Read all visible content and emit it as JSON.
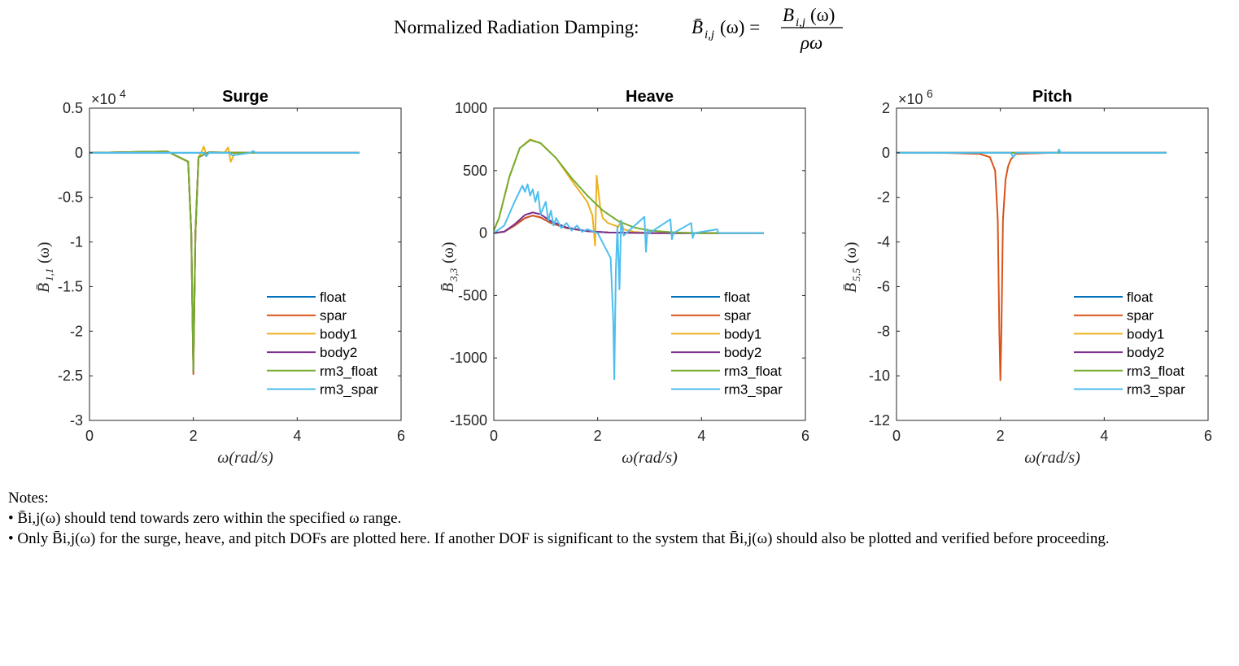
{
  "figure": {
    "title_prefix": "Normalized Radiation Damping:",
    "title_lhs": "B̄",
    "title_lhs_sub": "i,j",
    "title_lhs_arg": "(ω) =",
    "title_num": "B",
    "title_num_sub": "i,j",
    "title_num_arg": "(ω)",
    "title_den": "ρω"
  },
  "notes": {
    "heading": "Notes:",
    "line1": "• B̄i,j(ω) should tend towards zero within the specified ω range.",
    "line2": "• Only B̄i,j(ω) for the surge, heave, and pitch DOFs are plotted here. If another DOF is significant to the system that B̄i,j(ω) should also be plotted and verified before proceeding."
  },
  "chart_data": [
    {
      "type": "line",
      "title": "Surge",
      "xlabel": "ω(rad/s)",
      "ylabel": "B̄1,1(ω)",
      "ylabel_main": "B̄",
      "ylabel_sub": "1,1",
      "ylabel_arg": "(ω)",
      "exponent_label": "×10",
      "exponent_power": "4",
      "xlim": [
        0,
        6
      ],
      "ylim": [
        -3,
        0.5
      ],
      "xticks": [
        "0",
        "2",
        "4",
        "6"
      ],
      "yticks": [
        "0.5",
        "0",
        "-0.5",
        "-1",
        "-1.5",
        "-2",
        "-2.5",
        "-3"
      ],
      "ytick_values": [
        0.5,
        0,
        -0.5,
        -1,
        -1.5,
        -2,
        -2.5,
        -3
      ],
      "legend": "bottom-right",
      "series": [
        {
          "name": "float",
          "color": "#0072BD",
          "x": [
            0,
            1,
            2,
            3,
            4,
            5.2
          ],
          "y": [
            0,
            0,
            0,
            0,
            0,
            0
          ]
        },
        {
          "name": "spar",
          "color": "#D95319",
          "x": [
            0,
            1.0,
            1.5,
            1.9,
            1.96,
            2.0,
            2.04,
            2.1,
            2.3,
            3,
            4,
            5.2
          ],
          "y": [
            0,
            0.01,
            0.015,
            -0.1,
            -0.9,
            -2.48,
            -0.9,
            -0.05,
            0.005,
            0,
            0,
            0
          ]
        },
        {
          "name": "body1",
          "color": "#EDB120",
          "x": [
            0,
            1.0,
            1.5,
            1.9,
            1.96,
            2.0,
            2.04,
            2.1,
            2.15,
            2.2,
            2.25,
            2.3,
            2.6,
            2.67,
            2.72,
            2.8,
            3,
            4,
            5.2
          ],
          "y": [
            0,
            0.01,
            0.015,
            -0.1,
            -0.9,
            -2.4,
            -0.9,
            -0.05,
            0.0,
            0.07,
            -0.02,
            0.0,
            0.0,
            0.06,
            -0.1,
            0.0,
            0,
            0,
            0
          ]
        },
        {
          "name": "body2",
          "color": "#7E2F8E",
          "x": [
            0,
            1.0,
            1.5,
            1.9,
            1.96,
            2.0,
            2.04,
            2.1,
            2.3,
            3,
            4,
            5.2
          ],
          "y": [
            0,
            0.01,
            0.015,
            -0.1,
            -0.9,
            -2.45,
            -0.9,
            -0.05,
            0.005,
            0,
            0,
            0
          ]
        },
        {
          "name": "rm3_float",
          "color": "#77AC30",
          "x": [
            0,
            1.0,
            1.5,
            1.9,
            1.96,
            2.0,
            2.04,
            2.1,
            2.3,
            3,
            4,
            5.2
          ],
          "y": [
            0,
            0.01,
            0.015,
            -0.1,
            -0.9,
            -2.45,
            -0.9,
            -0.05,
            0.005,
            0,
            0,
            0
          ]
        },
        {
          "name": "rm3_spar",
          "color": "#4DBEEE",
          "x": [
            0,
            1.5,
            2.0,
            2.2,
            2.25,
            2.3,
            2.7,
            2.75,
            3.1,
            3.15,
            3.2,
            4,
            5.2
          ],
          "y": [
            0,
            0,
            0,
            0,
            -0.04,
            0,
            0,
            -0.03,
            0,
            0.02,
            0,
            0,
            0
          ]
        }
      ]
    },
    {
      "type": "line",
      "title": "Heave",
      "xlabel": "ω(rad/s)",
      "ylabel": "B̄3,3(ω)",
      "ylabel_main": "B̄",
      "ylabel_sub": "3,3",
      "ylabel_arg": "(ω)",
      "exponent_label": "",
      "exponent_power": "",
      "xlim": [
        0,
        6
      ],
      "ylim": [
        -1500,
        1000
      ],
      "xticks": [
        "0",
        "2",
        "4",
        "6"
      ],
      "yticks": [
        "1000",
        "500",
        "0",
        "-500",
        "-1000",
        "-1500"
      ],
      "ytick_values": [
        1000,
        500,
        0,
        -500,
        -1000,
        -1500
      ],
      "legend": "bottom-right",
      "series": [
        {
          "name": "float",
          "color": "#0072BD",
          "x": [
            0,
            0.2,
            0.4,
            0.6,
            0.75,
            0.9,
            1.1,
            1.4,
            1.8,
            2.2,
            3,
            4,
            5.2
          ],
          "y": [
            0,
            10,
            60,
            120,
            140,
            125,
            80,
            40,
            15,
            5,
            0,
            0,
            0
          ]
        },
        {
          "name": "spar",
          "color": "#D95319",
          "x": [
            0,
            0.2,
            0.4,
            0.6,
            0.75,
            0.9,
            1.1,
            1.4,
            1.8,
            2.2,
            3,
            4,
            5.2
          ],
          "y": [
            0,
            10,
            60,
            120,
            140,
            125,
            80,
            40,
            15,
            5,
            0,
            0,
            0
          ]
        },
        {
          "name": "body1",
          "color": "#EDB120",
          "x": [
            0,
            0.1,
            0.3,
            0.5,
            0.7,
            0.9,
            1.2,
            1.5,
            1.8,
            1.9,
            1.95,
            1.98,
            2.05,
            2.1,
            2.2,
            2.4,
            2.45,
            2.5,
            2.7,
            3,
            4,
            5.2
          ],
          "y": [
            20,
            120,
            450,
            680,
            750,
            720,
            600,
            420,
            250,
            140,
            -100,
            460,
            200,
            120,
            80,
            50,
            100,
            30,
            10,
            0,
            0,
            0
          ]
        },
        {
          "name": "body2",
          "color": "#7E2F8E",
          "x": [
            0,
            0.2,
            0.4,
            0.6,
            0.75,
            0.9,
            1.1,
            1.4,
            1.8,
            2.2,
            3,
            4,
            5.2
          ],
          "y": [
            0,
            12,
            70,
            145,
            165,
            150,
            95,
            45,
            15,
            5,
            0,
            0,
            0
          ]
        },
        {
          "name": "rm3_float",
          "color": "#77AC30",
          "x": [
            0,
            0.1,
            0.3,
            0.5,
            0.7,
            0.9,
            1.2,
            1.5,
            1.8,
            2.1,
            2.4,
            2.7,
            3.0,
            3.5,
            4.0,
            5.2
          ],
          "y": [
            20,
            120,
            450,
            680,
            745,
            720,
            600,
            440,
            300,
            180,
            95,
            45,
            20,
            5,
            0,
            0
          ]
        },
        {
          "name": "rm3_spar",
          "color": "#4DBEEE",
          "x": [
            0,
            0.2,
            0.4,
            0.55,
            0.6,
            0.65,
            0.7,
            0.75,
            0.8,
            0.85,
            0.9,
            1.0,
            1.05,
            1.1,
            1.15,
            1.2,
            1.3,
            1.4,
            1.5,
            1.6,
            1.7,
            1.8,
            2.0,
            2.25,
            2.3,
            2.32,
            2.35,
            2.38,
            2.42,
            2.45,
            2.5,
            2.9,
            2.93,
            2.96,
            3.0,
            3.4,
            3.43,
            3.46,
            3.8,
            3.83,
            3.86,
            4.3,
            4.33,
            4.7,
            5.2
          ],
          "y": [
            0,
            60,
            250,
            380,
            330,
            390,
            300,
            350,
            250,
            330,
            150,
            250,
            100,
            180,
            60,
            120,
            40,
            80,
            20,
            60,
            10,
            30,
            0,
            -200,
            -700,
            -1170,
            -300,
            50,
            -450,
            100,
            -20,
            130,
            -150,
            30,
            0,
            110,
            -50,
            0,
            80,
            -40,
            0,
            30,
            0,
            0,
            0
          ]
        }
      ]
    },
    {
      "type": "line",
      "title": "Pitch",
      "xlabel": "ω(rad/s)",
      "ylabel": "B̄5,5(ω)",
      "ylabel_main": "B̄",
      "ylabel_sub": "5,5",
      "ylabel_arg": "(ω)",
      "exponent_label": "×10",
      "exponent_power": "6",
      "xlim": [
        0,
        6
      ],
      "ylim": [
        -12,
        2
      ],
      "xticks": [
        "0",
        "2",
        "4",
        "6"
      ],
      "yticks": [
        "2",
        "0",
        "-2",
        "-4",
        "-6",
        "-8",
        "-10",
        "-12"
      ],
      "ytick_values": [
        2,
        0,
        -2,
        -4,
        -6,
        -8,
        -10,
        -12
      ],
      "legend": "bottom-right",
      "series": [
        {
          "name": "float",
          "color": "#0072BD",
          "x": [
            0,
            1,
            2,
            3,
            4,
            5.2
          ],
          "y": [
            0,
            0,
            0,
            0,
            0,
            0
          ]
        },
        {
          "name": "spar",
          "color": "#D95319",
          "x": [
            0,
            1.0,
            1.6,
            1.8,
            1.9,
            1.95,
            1.98,
            2.0,
            2.02,
            2.05,
            2.1,
            2.15,
            2.2,
            2.3,
            3,
            4,
            5.2
          ],
          "y": [
            0,
            -0.01,
            -0.05,
            -0.2,
            -0.8,
            -3,
            -8,
            -10.2,
            -8,
            -3,
            -1.2,
            -0.6,
            -0.3,
            -0.05,
            0,
            0,
            0
          ]
        },
        {
          "name": "body1",
          "color": "#EDB120",
          "x": [
            0,
            1,
            2,
            3,
            4,
            5.2
          ],
          "y": [
            0,
            0,
            0,
            0,
            0,
            0
          ]
        },
        {
          "name": "body2",
          "color": "#7E2F8E",
          "x": [
            0,
            1,
            2,
            3,
            4,
            5.2
          ],
          "y": [
            0,
            0,
            0,
            0,
            0,
            0
          ]
        },
        {
          "name": "rm3_float",
          "color": "#77AC30",
          "x": [
            0,
            1,
            2,
            3,
            4,
            5.2
          ],
          "y": [
            0,
            0,
            0,
            0,
            0,
            0
          ]
        },
        {
          "name": "rm3_spar",
          "color": "#4DBEEE",
          "x": [
            0,
            1.5,
            2.2,
            2.25,
            2.3,
            3.1,
            3.13,
            3.16,
            4,
            5.2
          ],
          "y": [
            0,
            0,
            0,
            -0.2,
            0,
            0,
            0.15,
            0,
            0,
            0
          ]
        }
      ]
    }
  ]
}
